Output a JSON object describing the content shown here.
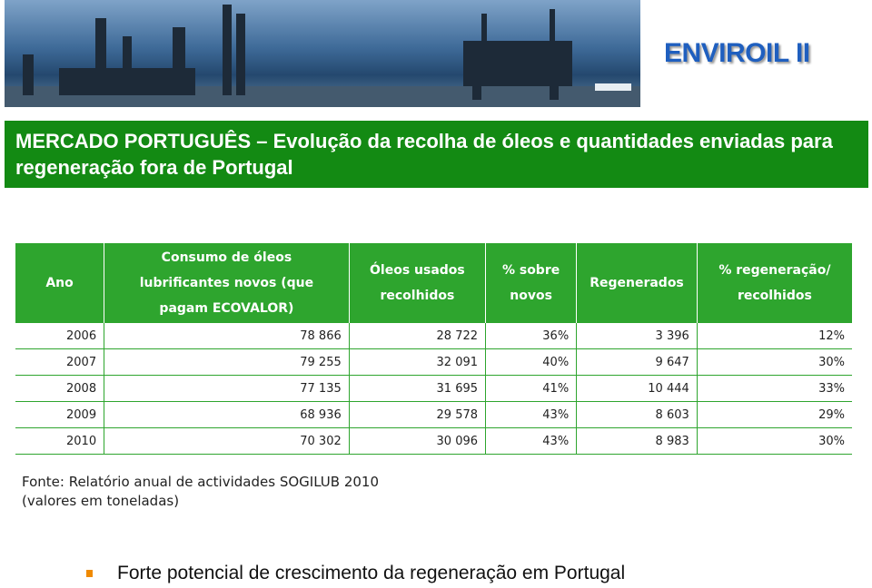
{
  "header": {
    "title": "ENVIROIL II",
    "subtitle": "MERCADO PORTUGUÊS – Evolução da recolha de óleos e quantidades enviadas para regeneração fora de Portugal"
  },
  "table": {
    "columns": [
      "Ano",
      "Consumo de óleos lubrificantes novos (que pagam ECOVALOR)",
      "Óleos usados recolhidos",
      "% sobre novos",
      "Regenerados",
      "% regeneração/ recolhidos"
    ],
    "rows": [
      [
        "2006",
        "78 866",
        "28 722",
        "36%",
        "3 396",
        "12%"
      ],
      [
        "2007",
        "79 255",
        "32 091",
        "40%",
        "9 647",
        "30%"
      ],
      [
        "2008",
        "77 135",
        "31 695",
        "41%",
        "10 444",
        "33%"
      ],
      [
        "2009",
        "68 936",
        "29 578",
        "43%",
        "8 603",
        "29%"
      ],
      [
        "2010",
        "70 302",
        "30 096",
        "43%",
        "8 983",
        "30%"
      ]
    ]
  },
  "notes": [
    "Fonte: Relatório anual de actividades SOGILUB 2010",
    "(valores em toneladas)"
  ],
  "bullets": [
    "Forte potencial de crescimento da regeneração em Portugal"
  ]
}
